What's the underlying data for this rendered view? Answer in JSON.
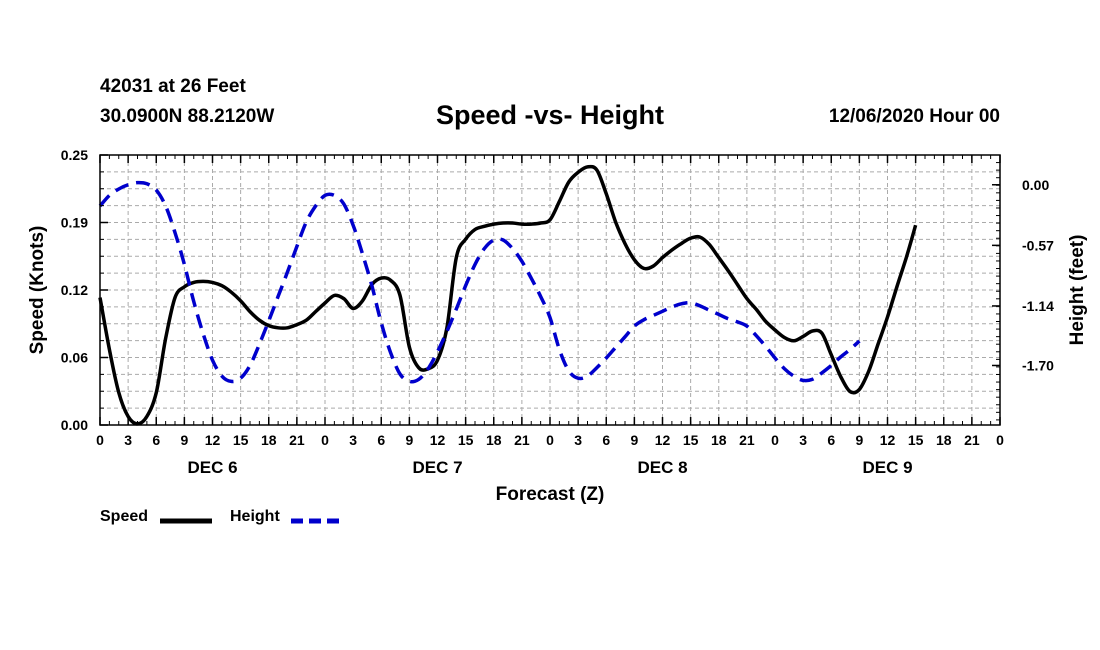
{
  "header": {
    "station": "42031 at 26 Feet",
    "coords": "30.0900N 88.2120W",
    "title": "Speed -vs- Height",
    "datetime": "12/06/2020 Hour 00"
  },
  "chart_data": {
    "type": "line",
    "title": "Speed -vs- Height",
    "xlabel": "Forecast (Z)",
    "ylabel": "Speed (Knots)",
    "y2label": "Height (feet)",
    "x_hours_range": [
      0,
      96
    ],
    "ylim": [
      0,
      0.25
    ],
    "y2lim": [
      -2.26,
      0.28
    ],
    "yticks": [
      "0.00",
      "0.06",
      "0.12",
      "0.19",
      "0.25"
    ],
    "y2ticks": [
      "0.00",
      "-0.57",
      "-1.14",
      "-1.70"
    ],
    "y2tick_values": [
      0.0,
      -0.57,
      -1.14,
      -1.7
    ],
    "xtick_labels": [
      "0",
      "3",
      "6",
      "9",
      "12",
      "15",
      "18",
      "21",
      "0",
      "3",
      "6",
      "9",
      "12",
      "15",
      "18",
      "21",
      "0",
      "3",
      "6",
      "9",
      "12",
      "15",
      "18",
      "21",
      "0",
      "3",
      "6",
      "9",
      "12",
      "15",
      "18",
      "21",
      "0"
    ],
    "day_labels": [
      {
        "label": "DEC 6",
        "hour": 12
      },
      {
        "label": "DEC 7",
        "hour": 36
      },
      {
        "label": "DEC 8",
        "hour": 60
      },
      {
        "label": "DEC 9",
        "hour": 84
      }
    ],
    "grid": true,
    "series": [
      {
        "name": "Speed",
        "color": "#000000",
        "style": "solid",
        "axis": "left",
        "points": [
          [
            0,
            0.118
          ],
          [
            1,
            0.07
          ],
          [
            2,
            0.03
          ],
          [
            3,
            0.008
          ],
          [
            4,
            0.001
          ],
          [
            5,
            0.008
          ],
          [
            6,
            0.03
          ],
          [
            7,
            0.08
          ],
          [
            8,
            0.118
          ],
          [
            9,
            0.128
          ],
          [
            10,
            0.132
          ],
          [
            11,
            0.133
          ],
          [
            12,
            0.132
          ],
          [
            13,
            0.129
          ],
          [
            14,
            0.123
          ],
          [
            15,
            0.115
          ],
          [
            16,
            0.105
          ],
          [
            17,
            0.097
          ],
          [
            18,
            0.092
          ],
          [
            19,
            0.09
          ],
          [
            20,
            0.09
          ],
          [
            21,
            0.093
          ],
          [
            22,
            0.097
          ],
          [
            23,
            0.105
          ],
          [
            24,
            0.113
          ],
          [
            25,
            0.12
          ],
          [
            26,
            0.117
          ],
          [
            27,
            0.108
          ],
          [
            28,
            0.115
          ],
          [
            29,
            0.13
          ],
          [
            30,
            0.136
          ],
          [
            31,
            0.134
          ],
          [
            32,
            0.12
          ],
          [
            33,
            0.072
          ],
          [
            34,
            0.053
          ],
          [
            35,
            0.052
          ],
          [
            36,
            0.06
          ],
          [
            37,
            0.09
          ],
          [
            38,
            0.155
          ],
          [
            39,
            0.172
          ],
          [
            40,
            0.181
          ],
          [
            41,
            0.184
          ],
          [
            42,
            0.186
          ],
          [
            43,
            0.187
          ],
          [
            44,
            0.187
          ],
          [
            45,
            0.186
          ],
          [
            46,
            0.186
          ],
          [
            47,
            0.187
          ],
          [
            48,
            0.19
          ],
          [
            49,
            0.207
          ],
          [
            50,
            0.225
          ],
          [
            51,
            0.234
          ],
          [
            52,
            0.239
          ],
          [
            53,
            0.236
          ],
          [
            54,
            0.214
          ],
          [
            55,
            0.188
          ],
          [
            56,
            0.168
          ],
          [
            57,
            0.153
          ],
          [
            58,
            0.145
          ],
          [
            59,
            0.147
          ],
          [
            60,
            0.155
          ],
          [
            61,
            0.162
          ],
          [
            62,
            0.168
          ],
          [
            63,
            0.173
          ],
          [
            64,
            0.174
          ],
          [
            65,
            0.167
          ],
          [
            66,
            0.155
          ],
          [
            67,
            0.143
          ],
          [
            68,
            0.13
          ],
          [
            69,
            0.117
          ],
          [
            70,
            0.107
          ],
          [
            71,
            0.096
          ],
          [
            72,
            0.088
          ],
          [
            73,
            0.081
          ],
          [
            74,
            0.078
          ],
          [
            75,
            0.082
          ],
          [
            76,
            0.087
          ],
          [
            77,
            0.085
          ],
          [
            78,
            0.065
          ],
          [
            79,
            0.045
          ],
          [
            80,
            0.031
          ],
          [
            81,
            0.033
          ],
          [
            82,
            0.05
          ],
          [
            83,
            0.075
          ],
          [
            84,
            0.1
          ],
          [
            85,
            0.128
          ],
          [
            86,
            0.155
          ],
          [
            87,
            0.185
          ]
        ]
      },
      {
        "name": "Height",
        "color": "#0000cc",
        "style": "dashed",
        "axis": "right",
        "points": [
          [
            0,
            -0.2
          ],
          [
            1,
            -0.1
          ],
          [
            2,
            -0.04
          ],
          [
            3,
            0.0
          ],
          [
            4,
            0.02
          ],
          [
            5,
            0.01
          ],
          [
            6,
            -0.05
          ],
          [
            7,
            -0.2
          ],
          [
            8,
            -0.45
          ],
          [
            9,
            -0.75
          ],
          [
            10,
            -1.1
          ],
          [
            11,
            -1.4
          ],
          [
            12,
            -1.65
          ],
          [
            13,
            -1.8
          ],
          [
            14,
            -1.85
          ],
          [
            15,
            -1.82
          ],
          [
            16,
            -1.7
          ],
          [
            17,
            -1.5
          ],
          [
            18,
            -1.28
          ],
          [
            19,
            -1.05
          ],
          [
            20,
            -0.82
          ],
          [
            21,
            -0.58
          ],
          [
            22,
            -0.35
          ],
          [
            23,
            -0.2
          ],
          [
            24,
            -0.1
          ],
          [
            25,
            -0.1
          ],
          [
            26,
            -0.18
          ],
          [
            27,
            -0.38
          ],
          [
            28,
            -0.65
          ],
          [
            29,
            -0.95
          ],
          [
            30,
            -1.3
          ],
          [
            31,
            -1.58
          ],
          [
            32,
            -1.78
          ],
          [
            33,
            -1.85
          ],
          [
            34,
            -1.83
          ],
          [
            35,
            -1.73
          ],
          [
            36,
            -1.57
          ],
          [
            37,
            -1.38
          ],
          [
            38,
            -1.17
          ],
          [
            39,
            -0.95
          ],
          [
            40,
            -0.75
          ],
          [
            41,
            -0.6
          ],
          [
            42,
            -0.52
          ],
          [
            43,
            -0.52
          ],
          [
            44,
            -0.6
          ],
          [
            45,
            -0.72
          ],
          [
            46,
            -0.88
          ],
          [
            47,
            -1.05
          ],
          [
            48,
            -1.25
          ],
          [
            49,
            -1.55
          ],
          [
            50,
            -1.75
          ],
          [
            51,
            -1.82
          ],
          [
            52,
            -1.8
          ],
          [
            53,
            -1.72
          ],
          [
            54,
            -1.63
          ],
          [
            55,
            -1.53
          ],
          [
            56,
            -1.43
          ],
          [
            57,
            -1.33
          ],
          [
            58,
            -1.27
          ],
          [
            59,
            -1.23
          ],
          [
            60,
            -1.19
          ],
          [
            61,
            -1.15
          ],
          [
            62,
            -1.12
          ],
          [
            63,
            -1.11
          ],
          [
            64,
            -1.14
          ],
          [
            65,
            -1.18
          ],
          [
            66,
            -1.22
          ],
          [
            67,
            -1.26
          ],
          [
            68,
            -1.29
          ],
          [
            69,
            -1.33
          ],
          [
            70,
            -1.42
          ],
          [
            71,
            -1.52
          ],
          [
            72,
            -1.63
          ],
          [
            73,
            -1.73
          ],
          [
            74,
            -1.8
          ],
          [
            75,
            -1.84
          ],
          [
            76,
            -1.83
          ],
          [
            77,
            -1.77
          ],
          [
            78,
            -1.7
          ],
          [
            79,
            -1.62
          ],
          [
            80,
            -1.55
          ],
          [
            81,
            -1.47
          ]
        ]
      }
    ]
  },
  "legend": {
    "speed_label": "Speed",
    "height_label": "Height"
  }
}
